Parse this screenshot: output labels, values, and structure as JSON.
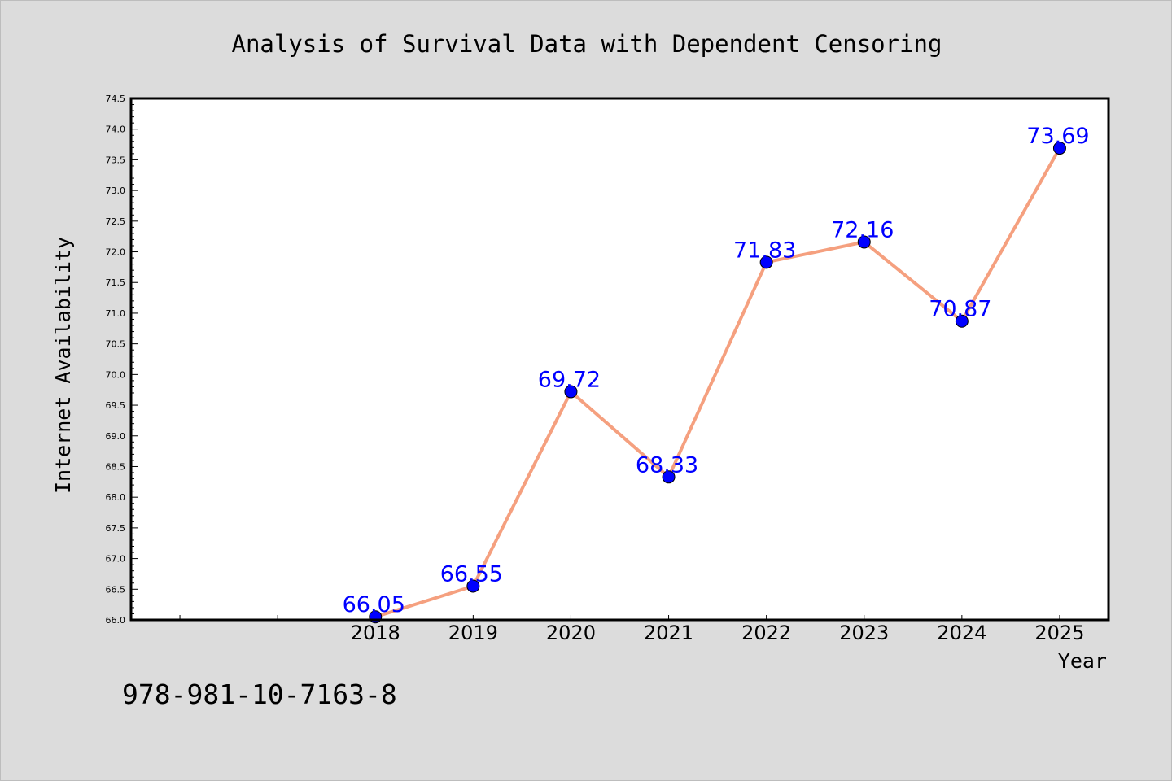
{
  "chart_data": {
    "type": "line",
    "title": "Analysis of Survival Data with Dependent Censoring",
    "xlabel": "Year",
    "ylabel": "Internet Availability",
    "categories": [
      "2018",
      "2019",
      "2020",
      "2021",
      "2022",
      "2023",
      "2024",
      "2025"
    ],
    "series": [
      {
        "values": [
          66.05,
          66.55,
          69.72,
          68.33,
          71.83,
          72.16,
          70.87,
          73.69
        ],
        "labels": [
          "66.05",
          "66.55",
          "69.72",
          "68.33",
          "71.83",
          "72.16",
          "70.87",
          "73.69"
        ]
      }
    ],
    "y_ticks": [
      "66.0",
      "66.5",
      "67.0",
      "67.5",
      "68.0",
      "68.5",
      "69.0",
      "69.5",
      "70.0",
      "70.5",
      "71.0",
      "71.5",
      "72.0",
      "72.5",
      "73.0",
      "73.5",
      "74.0",
      "74.5"
    ],
    "ylim": [
      66.0,
      74.5
    ],
    "x_slots": 10,
    "first_category_slot": 2,
    "grid": false,
    "legend": "none",
    "line_color": "#f5a07f",
    "marker_color": "#0000ff",
    "label_color": "#0000ff",
    "plot_background": "#ffffff",
    "figure_background": "#dcdcdc"
  },
  "footer": {
    "isbn": "978-981-10-7163-8"
  }
}
